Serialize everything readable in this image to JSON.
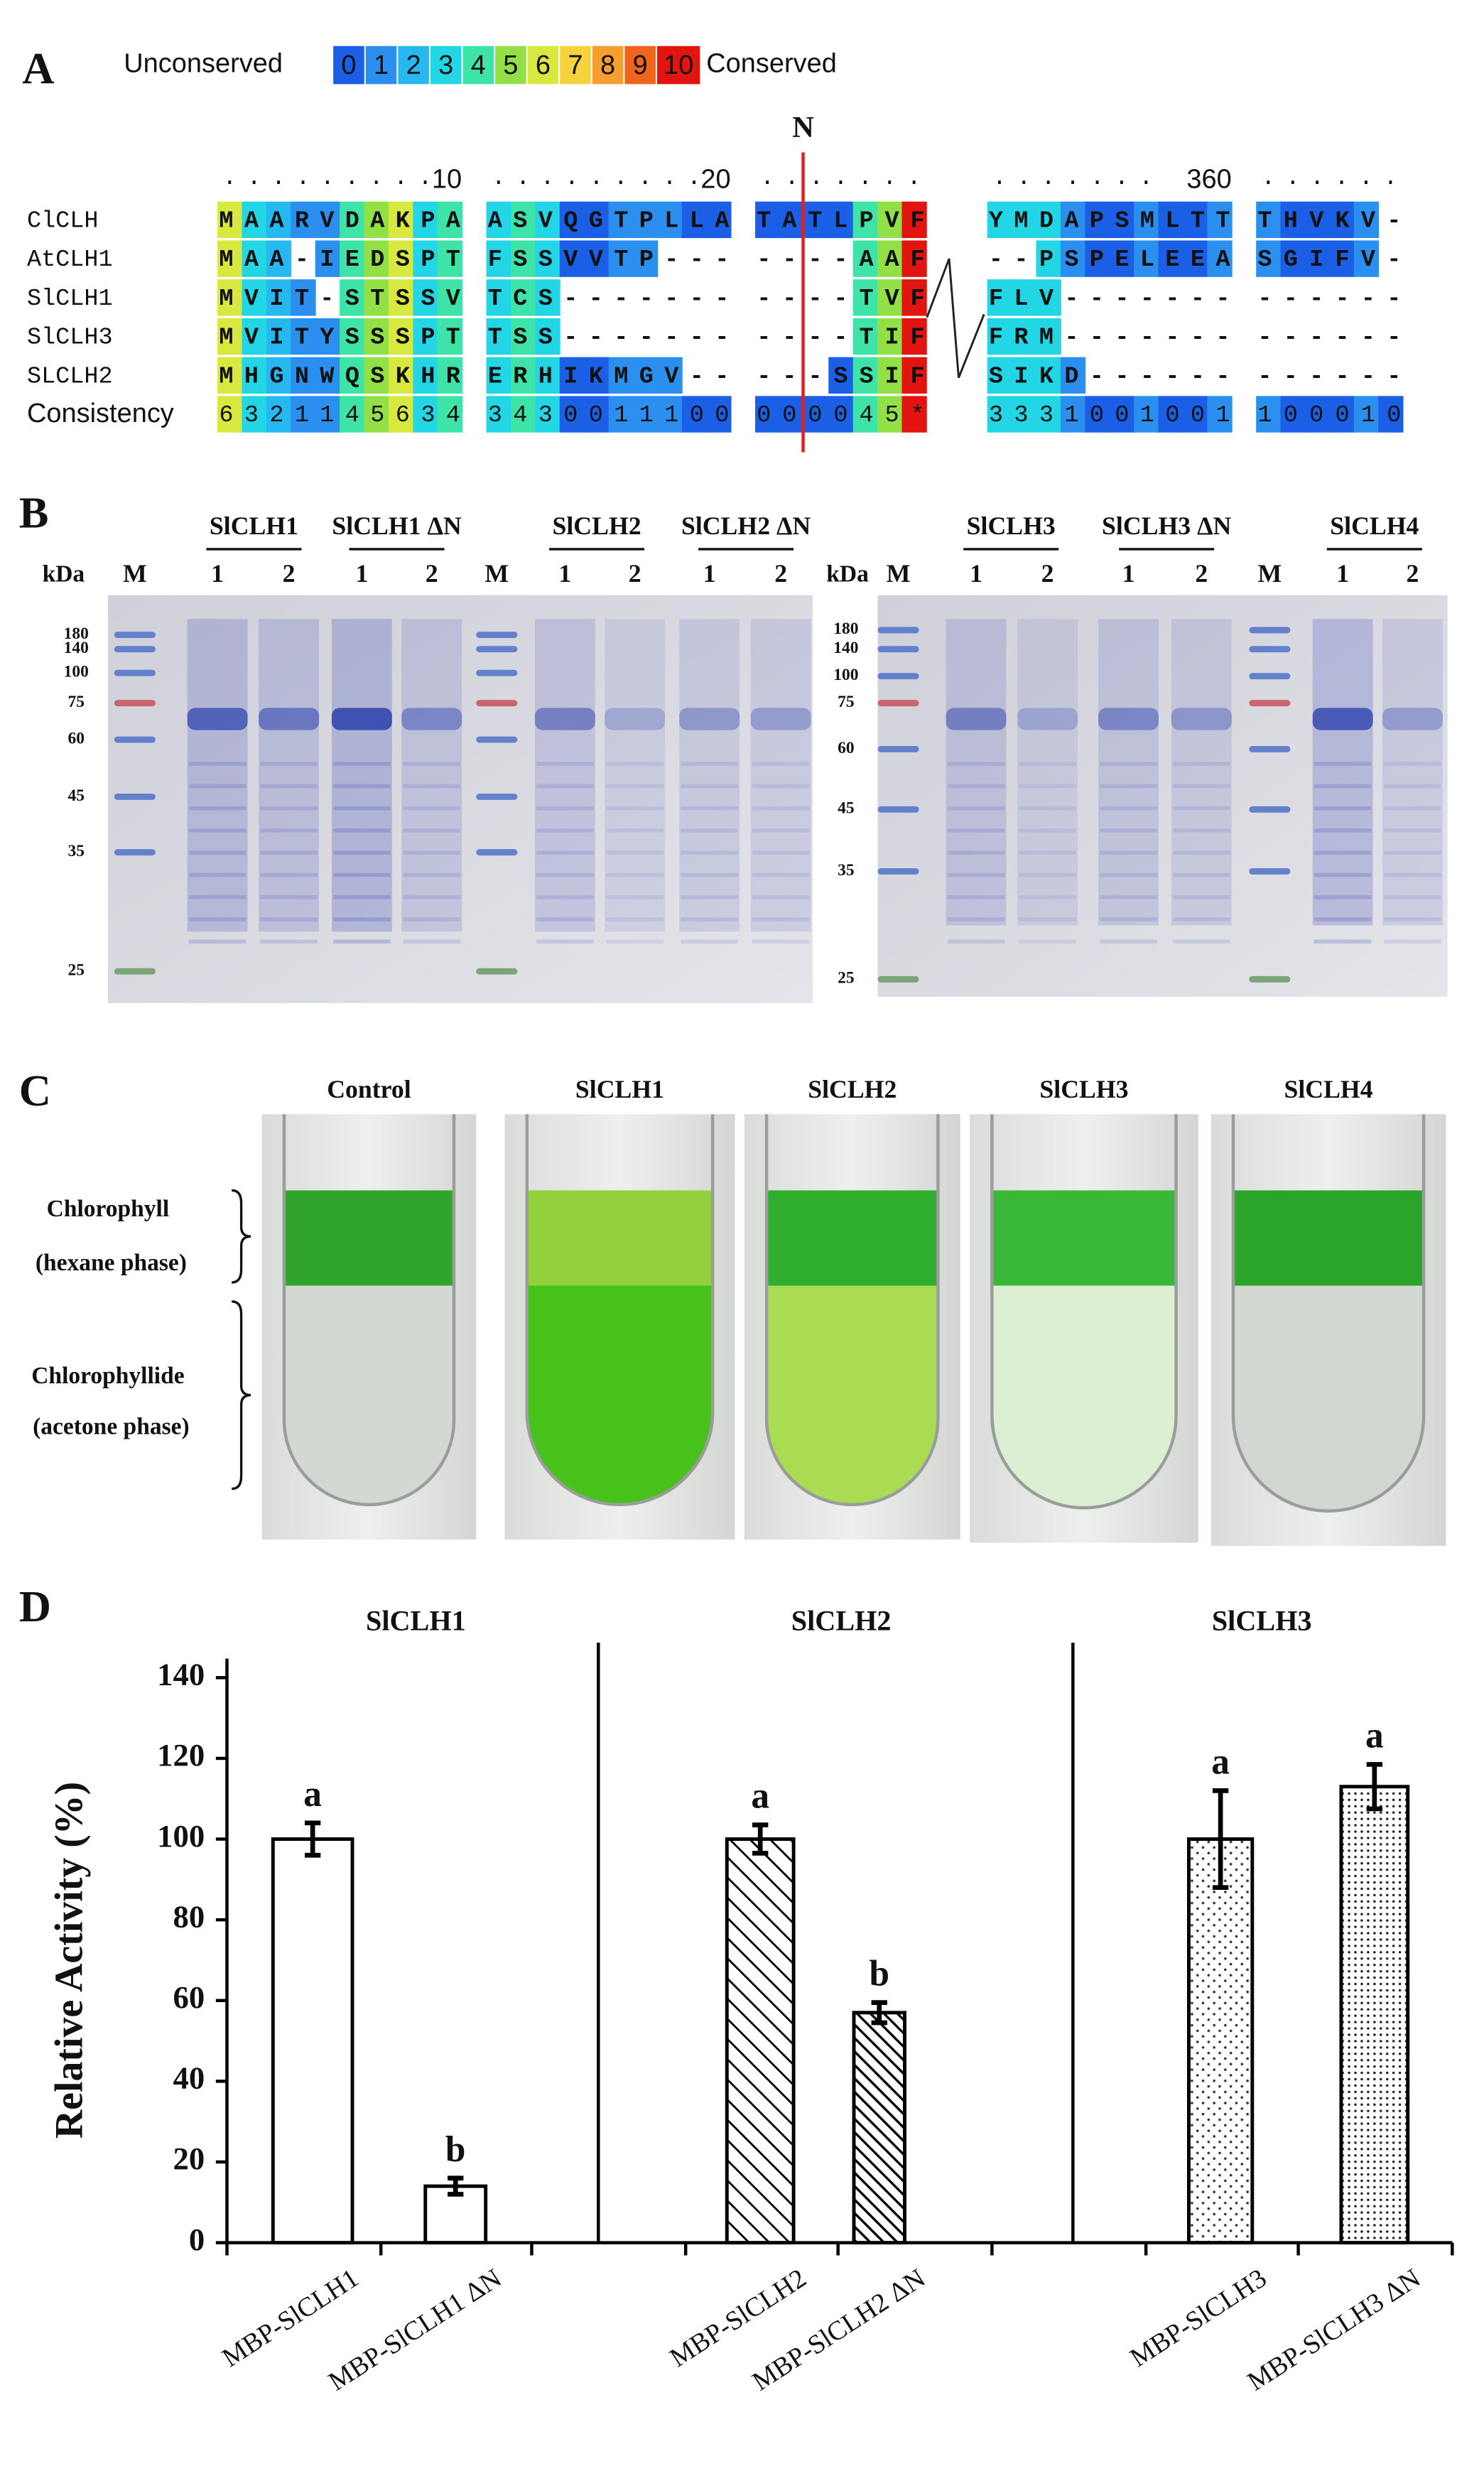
{
  "panel_a": {
    "label": "A",
    "legend": {
      "low": "Unconserved",
      "high": "Conserved",
      "levels": [
        "0",
        "1",
        "2",
        "3",
        "4",
        "5",
        "6",
        "7",
        "8",
        "9",
        "10"
      ],
      "colors": [
        "#1a5fe6",
        "#2b8ff0",
        "#27b8f2",
        "#22d6e6",
        "#3ee3a8",
        "#93e046",
        "#d9e83e",
        "#f6d23c",
        "#f5a02e",
        "#f0641e",
        "#e3140f"
      ]
    },
    "ruler": [
      "10",
      "20",
      "360"
    ],
    "marker": "N",
    "rows": [
      {
        "name": "ClCLH",
        "left": [
          "MAARVDAKPA",
          "ASVQGTPLLA",
          "TATLPVF"
        ],
        "right": [
          "YMDAPSMLTT",
          "THVKV-"
        ]
      },
      {
        "name": "AtCLH1",
        "left": [
          "MAA-IEDSPT",
          "FSSVVTP---",
          "----AAF"
        ],
        "right": [
          "--PSPELEEA",
          "SGIFV-"
        ]
      },
      {
        "name": "SlCLH1",
        "left": [
          "MVIT-STSSV",
          "TCS-------",
          "----TVF"
        ],
        "right": [
          "FLV-------",
          "------"
        ]
      },
      {
        "name": "SlCLH3",
        "left": [
          "MVITYSSSPT",
          "TSS-------",
          "----TIF"
        ],
        "right": [
          "FRM-------",
          "------"
        ]
      },
      {
        "name": "SLCLH2",
        "left": [
          "MHGNWQSKHR",
          "ERHIKMGV--",
          "---SSIF"
        ],
        "right": [
          "SIKD------",
          "------"
        ]
      },
      {
        "name": "Consistency",
        "left": [
          "6321145634",
          "3430011100",
          "000045*"
        ],
        "right": [
          "3331001001",
          "100010"
        ]
      }
    ]
  },
  "panel_b": {
    "label": "B",
    "gels": [
      {
        "kda": "kDa",
        "ladder": [
          "180",
          "140",
          "100",
          "75",
          "60",
          "45",
          "35",
          "25"
        ],
        "groups": [
          "SlCLH1",
          "SlCLH1 ΔN",
          "SlCLH2",
          "SlCLH2 ΔN"
        ],
        "lanes": [
          "M",
          "1",
          "2",
          "1",
          "2",
          "M",
          "1",
          "2",
          "1",
          "2"
        ]
      },
      {
        "kda": "kDa",
        "ladder": [
          "180",
          "140",
          "100",
          "75",
          "60",
          "45",
          "35",
          "25"
        ],
        "groups": [
          "SlCLH3",
          "SlCLH3 ΔN",
          "SlCLH4"
        ],
        "lanes": [
          "M",
          "1",
          "2",
          "1",
          "2",
          "M",
          "1",
          "2"
        ]
      }
    ]
  },
  "panel_c": {
    "label": "C",
    "samples": [
      "Control",
      "SlCLH1",
      "SlCLH2",
      "SlCLH3",
      "SlCLH4"
    ],
    "phases": [
      {
        "name": "Chlorophyll",
        "note": "(hexane phase)"
      },
      {
        "name": "Chlorophyllide",
        "note": "(acetone phase)"
      }
    ]
  },
  "chart_data": {
    "type": "bar",
    "panel_label": "D",
    "facets": [
      "SlCLH1",
      "SlCLH2",
      "SlCLH3"
    ],
    "categories": [
      "MBP-SlCLH1",
      "MBP-SlCLH1 ΔN",
      "MBP-SlCLH2",
      "MBP-SlCLH2 ΔN",
      "MBP-SlCLH3",
      "MBP-SlCLH3 ΔN"
    ],
    "values": [
      100,
      14,
      100,
      57,
      100,
      113
    ],
    "errors": [
      4,
      2,
      3.5,
      2.5,
      12,
      5.5
    ],
    "annotations": [
      "a",
      "b",
      "a",
      "b",
      "a",
      "a"
    ],
    "patterns": [
      "solid",
      "solid",
      "hatch",
      "hatch-dense",
      "dots",
      "dots-dense"
    ],
    "color": "#000000",
    "ylabel": "Relative Activity (%)",
    "ylim": [
      0,
      140
    ],
    "yticks": [
      0,
      20,
      40,
      60,
      80,
      100,
      120,
      140
    ]
  }
}
